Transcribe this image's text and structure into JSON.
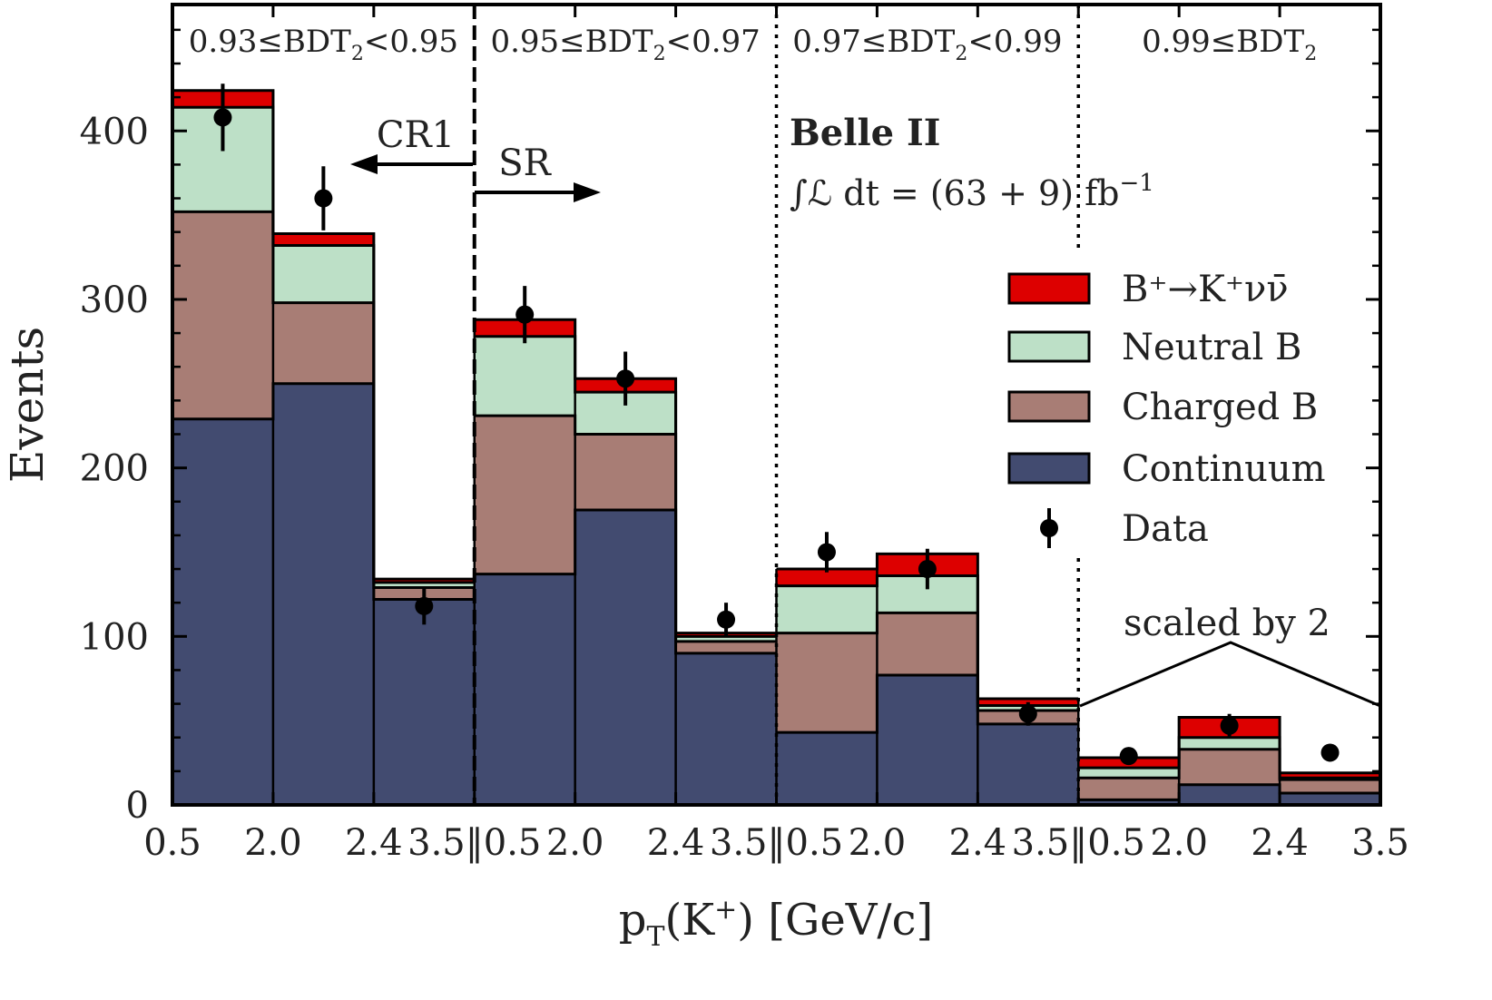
{
  "chart_data": {
    "type": "bar",
    "stacked": true,
    "xlabel": "p",
    "xlabel_sub": "T",
    "xlabel_paren": "(K",
    "xlabel_sup": "+",
    "xlabel_tail": ") [GeV/c]",
    "ylabel": "Events",
    "ylim": [
      0,
      475
    ],
    "yticks": [
      "0",
      "100",
      "200",
      "300",
      "400"
    ],
    "ytick_values": [
      0,
      100,
      200,
      300,
      400
    ],
    "xtick_labels": [
      "0.5",
      "2.0",
      "2.4",
      "3.5‖0.5",
      "2.0",
      "2.4",
      "3.5‖0.5",
      "2.0",
      "2.4",
      "3.5‖0.5",
      "2.0",
      "2.4",
      "3.5"
    ],
    "regions": [
      {
        "label_pre": "0.93≤BDT",
        "label_sub": "2",
        "label_post": "<0.95"
      },
      {
        "label_pre": "0.95≤BDT",
        "label_sub": "2",
        "label_post": "<0.97"
      },
      {
        "label_pre": "0.97≤BDT",
        "label_sub": "2",
        "label_post": "<0.99"
      },
      {
        "label_pre": "0.99≤BDT",
        "label_sub": "2",
        "label_post": ""
      }
    ],
    "series": [
      {
        "name": "Continuum",
        "color": "#424b70",
        "values": [
          229,
          250,
          122,
          137,
          175,
          90,
          43,
          77,
          48,
          3,
          12,
          7
        ]
      },
      {
        "name": "Charged B",
        "color": "#a87d75",
        "values": [
          123,
          48,
          7,
          94,
          45,
          7,
          59,
          37,
          8,
          13,
          21,
          8
        ]
      },
      {
        "name": "Neutral B",
        "color": "#bde0c7",
        "values": [
          62,
          34,
          3,
          47,
          25,
          3,
          28,
          22,
          3,
          6,
          7,
          1
        ]
      },
      {
        "name": "B⁺→K⁺νν̄",
        "color": "#dd0000",
        "values": [
          10,
          7,
          2,
          10,
          8,
          2,
          10,
          13,
          4,
          6,
          12,
          3
        ]
      }
    ],
    "data": {
      "name": "Data",
      "values": [
        408,
        360,
        118,
        291,
        253,
        110,
        150,
        140,
        54,
        29,
        47,
        31
      ],
      "errors": [
        20,
        19,
        11,
        17,
        16,
        10,
        12,
        12,
        7,
        5,
        7,
        5
      ]
    },
    "annotations": {
      "cr1": "CR1",
      "sr": "SR",
      "experiment": "Belle II",
      "lumi_pre": "∫ℒ dt = (63 + 9) fb",
      "lumi_sup": "−1",
      "scaled": "scaled by 2"
    },
    "legend": {
      "placement": "right",
      "items": [
        {
          "label": "B⁺→K⁺νν̄",
          "color": "#dd0000",
          "kind": "box"
        },
        {
          "label": "Neutral B",
          "color": "#bde0c7",
          "kind": "box"
        },
        {
          "label": "Charged B",
          "color": "#a87d75",
          "kind": "box"
        },
        {
          "label": "Continuum",
          "color": "#424b70",
          "kind": "box"
        },
        {
          "label": "Data",
          "color": "#000000",
          "kind": "marker"
        }
      ]
    }
  }
}
